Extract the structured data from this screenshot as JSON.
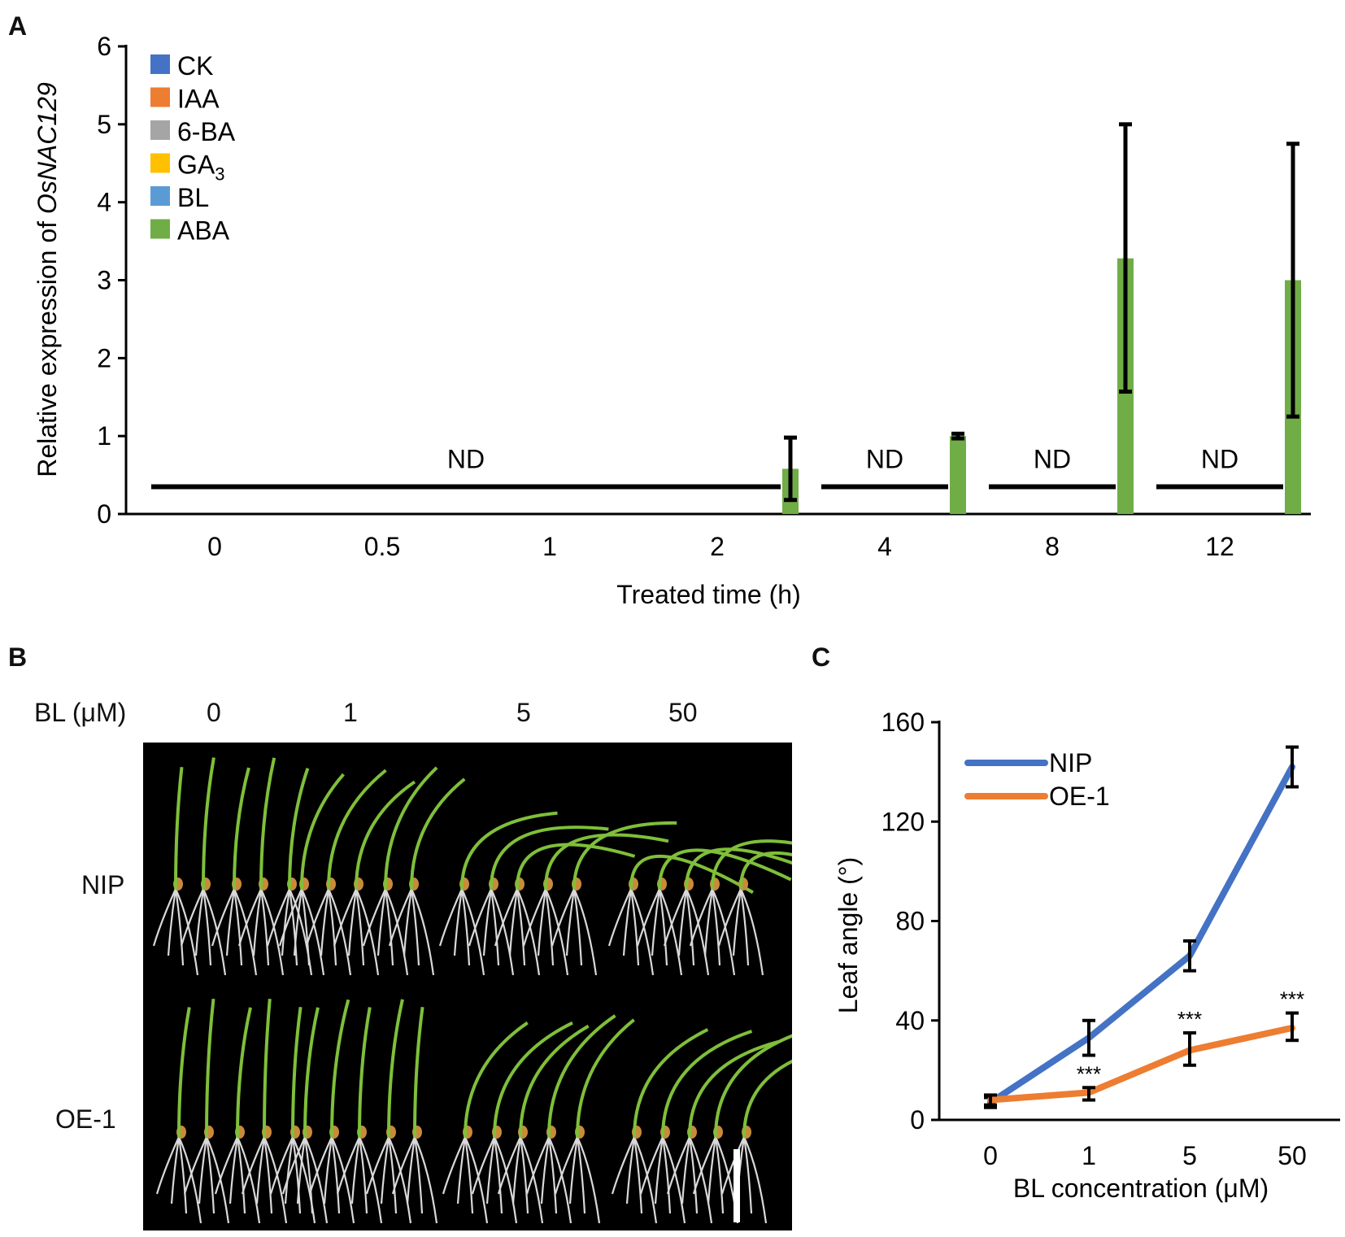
{
  "chart_data": [
    {
      "panel": "A",
      "type": "bar",
      "ylabel": "Relative expression of OsNAC129",
      "ylabel_parts": [
        "Relative expression of ",
        "OsNAC129"
      ],
      "xlabel": "Treated time (h)",
      "ylim": [
        0,
        6
      ],
      "yticks": [
        "0",
        "1",
        "2",
        "3",
        "4",
        "5",
        "6"
      ],
      "categories": [
        "0",
        "0.5",
        "1",
        "2",
        "4",
        "8",
        "12"
      ],
      "legend": {
        "position": "top-left",
        "entries": [
          {
            "name": "CK",
            "color": "#4472C4"
          },
          {
            "name": "IAA",
            "color": "#ED7D31"
          },
          {
            "name": "6-BA",
            "color": "#A5A5A5"
          },
          {
            "name": "GA",
            "sub": "3",
            "color": "#FFC000"
          },
          {
            "name": "BL",
            "color": "#5B9BD5"
          },
          {
            "name": "ABA",
            "color": "#70AD47"
          }
        ]
      },
      "series": [
        {
          "name": "ABA",
          "color": "#70AD47",
          "points": [
            {
              "category": "2",
              "value": 0.58,
              "err_low": 0.18,
              "err_high": 0.98
            },
            {
              "category": "4",
              "value": 1.0,
              "err_low": 0.97,
              "err_high": 1.03
            },
            {
              "category": "8",
              "value": 3.28,
              "err_low": 1.57,
              "err_high": 5.0
            },
            {
              "category": "12",
              "value": 3.0,
              "err_low": 1.25,
              "err_high": 4.75
            }
          ]
        }
      ],
      "nd_annotations": [
        {
          "text": "ND",
          "from": "0",
          "to": "2",
          "value": 0.35
        },
        {
          "text": "ND",
          "from": "4",
          "to": "4",
          "value": 0.35
        },
        {
          "text": "ND",
          "from": "8",
          "to": "8",
          "value": 0.35
        },
        {
          "text": "ND",
          "from": "12",
          "to": "12",
          "value": 0.35
        }
      ]
    },
    {
      "panel": "C",
      "type": "line",
      "ylabel": "Leaf angle (°)",
      "xlabel": "BL concentration (μM)",
      "ylim": [
        0,
        160
      ],
      "yticks": [
        "0",
        "40",
        "80",
        "120",
        "160"
      ],
      "categories": [
        "0",
        "1",
        "5",
        "50"
      ],
      "legend": {
        "position": "top-left"
      },
      "series": [
        {
          "name": "NIP",
          "color": "#4472C4",
          "values": [
            7,
            33,
            66,
            142
          ],
          "err_low": [
            5,
            26,
            60,
            134
          ],
          "err_high": [
            9,
            40,
            72,
            150
          ]
        },
        {
          "name": "OE-1",
          "color": "#ED7D31",
          "values": [
            8,
            11,
            28,
            37
          ],
          "err_low": [
            6,
            8,
            22,
            32
          ],
          "err_high": [
            10,
            13,
            35,
            43
          ],
          "significance": [
            "",
            "***",
            "***",
            "***"
          ]
        }
      ]
    }
  ],
  "panels": {
    "a_letter": "A",
    "b_letter": "B",
    "c_letter": "C"
  },
  "panel_b": {
    "bl_label": "BL (μM)",
    "concentrations": [
      "0",
      "1",
      "5",
      "50"
    ],
    "rows": [
      "NIP",
      "OE-1"
    ]
  }
}
